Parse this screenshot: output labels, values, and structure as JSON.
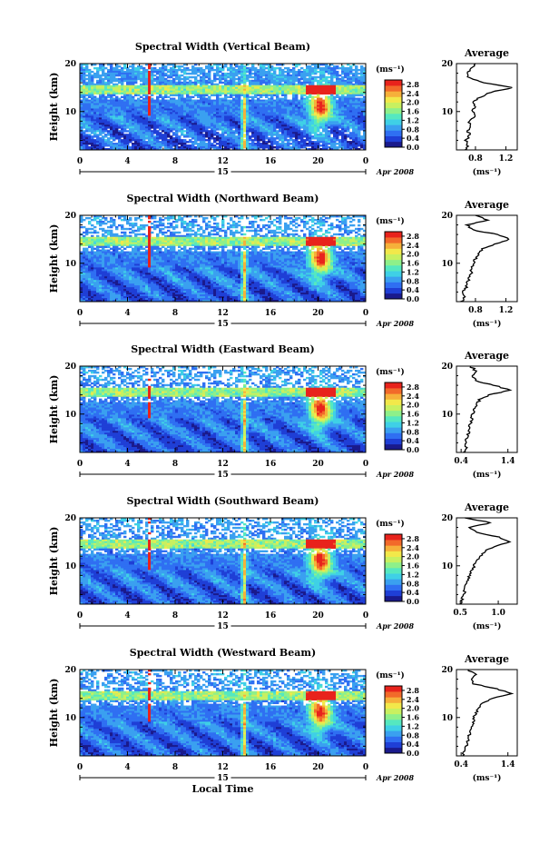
{
  "common": {
    "y_label": "Height (km)",
    "x_label": "Local Time",
    "day_label": "15",
    "date_label": "Apr 2008",
    "unit_label": "(ms⁻¹)",
    "average_title": "Average",
    "colorbar_ticks": [
      "2.8",
      "2.4",
      "2.0",
      "1.6",
      "1.2",
      "0.8",
      "0.4",
      "0.0"
    ],
    "colorscale": [
      "#1a1a8c",
      "#1f3fd6",
      "#2f6ff2",
      "#3aa0f0",
      "#3fd0e6",
      "#55e8c0",
      "#8ef08a",
      "#c8f060",
      "#f2e84a",
      "#f6b03a",
      "#f26a2a",
      "#e8231c"
    ]
  },
  "chart_data": [
    {
      "type": "heatmap",
      "title": "Spectral Width (Vertical Beam)",
      "xlabel": "",
      "ylabel": "Height (km)",
      "x_ticks": [
        "0",
        "4",
        "8",
        "12",
        "16",
        "20",
        "0"
      ],
      "xlim": [
        0,
        24
      ],
      "y_ticks": [
        "20",
        "10"
      ],
      "ylim": [
        2,
        20
      ],
      "colorbar": {
        "label": "(ms⁻¹)",
        "ticks": [
          2.8,
          2.4,
          2.0,
          1.6,
          1.2,
          0.8,
          0.4,
          0.0
        ],
        "range": [
          0,
          3.0
        ]
      },
      "average_profile": {
        "type": "line",
        "title": "Average",
        "xlabel": "(ms⁻¹)",
        "x_ticks": [
          "0.8",
          "1.2"
        ],
        "xlim": [
          0.55,
          1.35
        ],
        "y_ticks": [
          "20",
          "10"
        ],
        "ylim": [
          2,
          20
        ],
        "height_km": [
          2,
          3,
          4,
          5,
          6,
          7,
          8,
          9,
          10,
          11,
          12,
          13,
          14,
          15,
          16,
          17,
          18,
          19,
          20
        ],
        "width_ms": [
          0.66,
          0.7,
          0.68,
          0.72,
          0.7,
          0.74,
          0.72,
          0.78,
          0.76,
          0.8,
          0.78,
          0.86,
          1.0,
          1.3,
          0.9,
          0.72,
          0.68,
          0.75,
          0.8
        ]
      }
    },
    {
      "type": "heatmap",
      "title": "Spectral Width (Northward Beam)",
      "xlabel": "",
      "ylabel": "Height (km)",
      "x_ticks": [
        "0",
        "4",
        "8",
        "12",
        "16",
        "20",
        "0"
      ],
      "xlim": [
        0,
        24
      ],
      "y_ticks": [
        "20",
        "10"
      ],
      "ylim": [
        2,
        20
      ],
      "colorbar": {
        "label": "(ms⁻¹)",
        "ticks": [
          2.8,
          2.4,
          2.0,
          1.6,
          1.2,
          0.8,
          0.4,
          0.0
        ],
        "range": [
          0,
          3.0
        ]
      },
      "average_profile": {
        "type": "line",
        "title": "Average",
        "xlabel": "(ms⁻¹)",
        "x_ticks": [
          "0.8",
          "1.2"
        ],
        "xlim": [
          0.55,
          1.35
        ],
        "height_km": [
          2,
          3,
          4,
          5,
          6,
          7,
          8,
          9,
          10,
          11,
          12,
          13,
          14,
          15,
          16,
          17,
          18,
          19,
          20
        ],
        "width_ms": [
          0.62,
          0.66,
          0.64,
          0.68,
          0.7,
          0.72,
          0.74,
          0.76,
          0.78,
          0.8,
          0.84,
          0.9,
          1.05,
          1.25,
          1.1,
          0.75,
          0.7,
          0.95,
          0.8
        ]
      }
    },
    {
      "type": "heatmap",
      "title": "Spectral Width (Eastward Beam)",
      "xlabel": "",
      "ylabel": "Height (km)",
      "x_ticks": [
        "0",
        "4",
        "8",
        "12",
        "16",
        "20",
        "0"
      ],
      "xlim": [
        0,
        24
      ],
      "y_ticks": [
        "20",
        "10"
      ],
      "ylim": [
        2,
        20
      ],
      "colorbar": {
        "label": "(ms⁻¹)",
        "ticks": [
          2.8,
          2.4,
          2.0,
          1.6,
          1.2,
          0.8,
          0.4,
          0.0
        ],
        "range": [
          0,
          3.0
        ]
      },
      "average_profile": {
        "type": "line",
        "title": "Average",
        "xlabel": "(ms⁻¹)",
        "x_ticks": [
          "0.4",
          "1.4"
        ],
        "xlim": [
          0.3,
          1.6
        ],
        "height_km": [
          2,
          3,
          4,
          5,
          6,
          7,
          8,
          9,
          10,
          11,
          12,
          13,
          14,
          15,
          16,
          17,
          18,
          19,
          20
        ],
        "width_ms": [
          0.45,
          0.5,
          0.48,
          0.52,
          0.55,
          0.58,
          0.6,
          0.62,
          0.64,
          0.68,
          0.72,
          0.8,
          1.0,
          1.45,
          1.1,
          0.7,
          0.65,
          0.72,
          0.6
        ]
      }
    },
    {
      "type": "heatmap",
      "title": "Spectral Width (Southward Beam)",
      "xlabel": "",
      "ylabel": "Height (km)",
      "x_ticks": [
        "0",
        "4",
        "8",
        "12",
        "16",
        "20",
        "0"
      ],
      "xlim": [
        0,
        24
      ],
      "y_ticks": [
        "20",
        "10"
      ],
      "ylim": [
        2,
        20
      ],
      "colorbar": {
        "label": "(ms⁻¹)",
        "ticks": [
          2.8,
          2.4,
          2.0,
          1.6,
          1.2,
          0.8,
          0.4,
          0.0
        ],
        "range": [
          0,
          3.0
        ]
      },
      "average_profile": {
        "type": "line",
        "title": "Average",
        "xlabel": "(ms⁻¹)",
        "x_ticks": [
          "0.5",
          "1.0"
        ],
        "xlim": [
          0.45,
          1.25
        ],
        "height_km": [
          2,
          3,
          4,
          5,
          6,
          7,
          8,
          9,
          10,
          11,
          12,
          13,
          14,
          15,
          16,
          17,
          18,
          19,
          20
        ],
        "width_ms": [
          0.5,
          0.52,
          0.55,
          0.56,
          0.58,
          0.6,
          0.62,
          0.66,
          0.68,
          0.72,
          0.76,
          0.82,
          0.95,
          1.15,
          1.0,
          0.7,
          0.62,
          0.9,
          0.56
        ]
      }
    },
    {
      "type": "heatmap",
      "title": "Spectral Width (Westward Beam)",
      "xlabel": "Local Time",
      "ylabel": "Height (km)",
      "x_ticks": [
        "0",
        "4",
        "8",
        "12",
        "16",
        "20",
        "0"
      ],
      "xlim": [
        0,
        24
      ],
      "y_ticks": [
        "20",
        "10"
      ],
      "ylim": [
        2,
        20
      ],
      "colorbar": {
        "label": "(ms⁻¹)",
        "ticks": [
          2.8,
          2.4,
          2.0,
          1.6,
          1.2,
          0.8,
          0.4,
          0.0
        ],
        "range": [
          0,
          3.0
        ]
      },
      "average_profile": {
        "type": "line",
        "title": "Average",
        "xlabel": "(ms⁻¹)",
        "x_ticks": [
          "0.4",
          "1.4"
        ],
        "xlim": [
          0.3,
          1.6
        ],
        "height_km": [
          2,
          3,
          4,
          5,
          6,
          7,
          8,
          9,
          10,
          11,
          12,
          13,
          14,
          15,
          16,
          17,
          18,
          19,
          20
        ],
        "width_ms": [
          0.42,
          0.48,
          0.5,
          0.54,
          0.56,
          0.6,
          0.62,
          0.65,
          0.68,
          0.72,
          0.76,
          0.85,
          1.05,
          1.5,
          1.15,
          0.68,
          0.62,
          0.7,
          0.55
        ]
      }
    }
  ]
}
